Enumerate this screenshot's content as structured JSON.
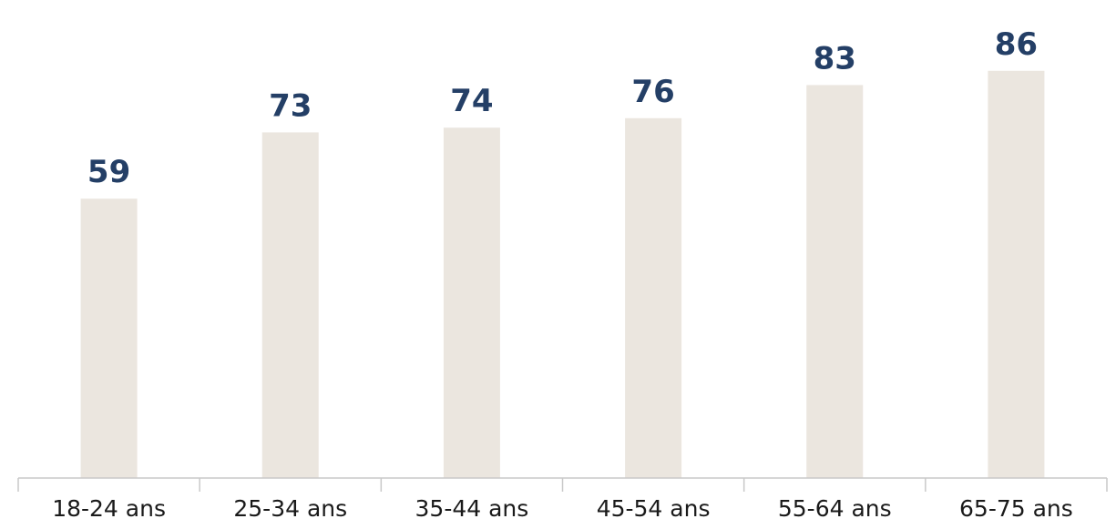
{
  "chart_data": {
    "type": "bar",
    "categories": [
      "18-24 ans",
      "25-34 ans",
      "35-44 ans",
      "45-54 ans",
      "55-64 ans",
      "65-75 ans"
    ],
    "values": [
      59,
      73,
      74,
      76,
      83,
      86
    ],
    "ylim": [
      0,
      100
    ],
    "grid": false,
    "legend": "none",
    "colors": {
      "bar": "#ebe6df",
      "value_label": "#243f66",
      "category_label": "#1a1a1a",
      "axis": "#c9c9c9"
    }
  }
}
